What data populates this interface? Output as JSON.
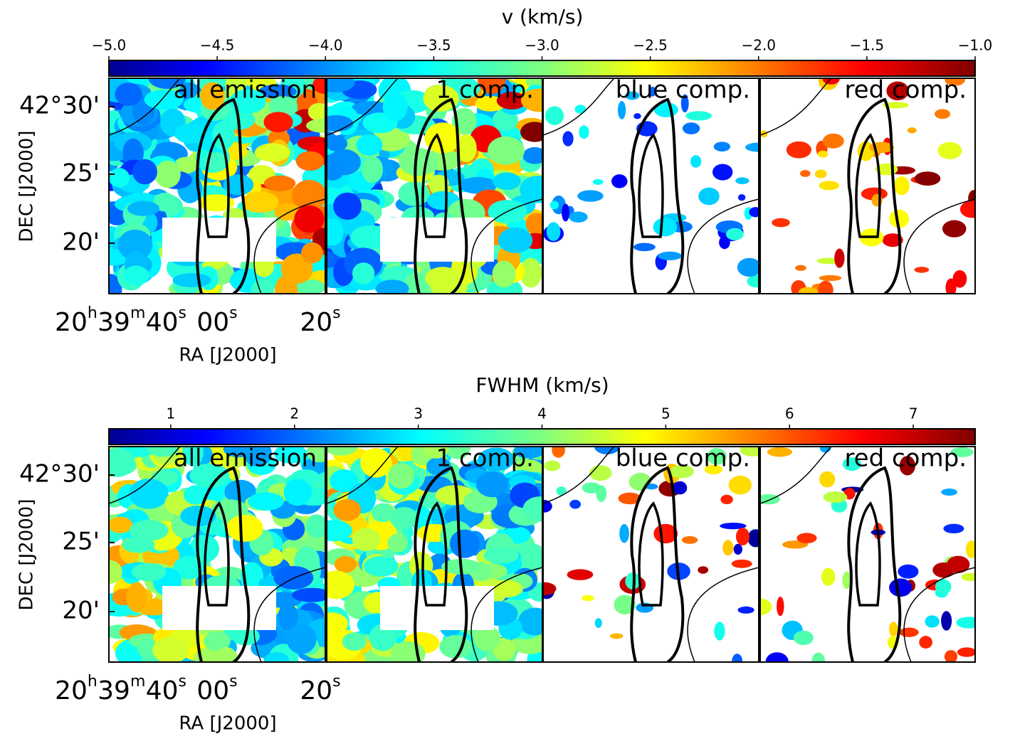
{
  "chart_data": [
    {
      "type": "map",
      "colorbar_label": "v (km/s)",
      "colormap": "jet",
      "clim": [
        -5.0,
        -1.0
      ],
      "cticks": [
        {
          "value": -5,
          "label": "−5.0"
        },
        {
          "value": -4.5,
          "label": "−4.5"
        },
        {
          "value": -4,
          "label": "−4.0"
        },
        {
          "value": -3.5,
          "label": "−3.5"
        },
        {
          "value": -3,
          "label": "−3.0"
        },
        {
          "value": -2.5,
          "label": "−2.5"
        },
        {
          "value": -2,
          "label": "−2.0"
        },
        {
          "value": -1.5,
          "label": "−1.5"
        },
        {
          "value": -1,
          "label": "−1.0"
        }
      ],
      "panels": [
        "all emission",
        "1 comp.",
        "blue comp.",
        "red comp."
      ],
      "ytick_labels": [
        "42°30'",
        "25'",
        "20'"
      ],
      "ylabel": "DEC [J2000]",
      "xtick_labels": [
        "20h39m40s",
        "00s",
        "20s"
      ],
      "xlabel": "RA [J2000]"
    },
    {
      "type": "map",
      "colorbar_label": "FWHM (km/s)",
      "colormap": "jet",
      "clim": [
        0.5,
        7.5
      ],
      "cticks": [
        1,
        2,
        3,
        4,
        5,
        6,
        7
      ],
      "panels": [
        "all emission",
        "1 comp.",
        "blue comp.",
        "red comp."
      ],
      "ytick_labels": [
        "42°30'",
        "25'",
        "20'"
      ],
      "ylabel": "DEC [J2000]",
      "xtick_labels": [
        "20h39m40s",
        "00s",
        "20s"
      ],
      "xlabel": "RA [J2000]"
    }
  ]
}
